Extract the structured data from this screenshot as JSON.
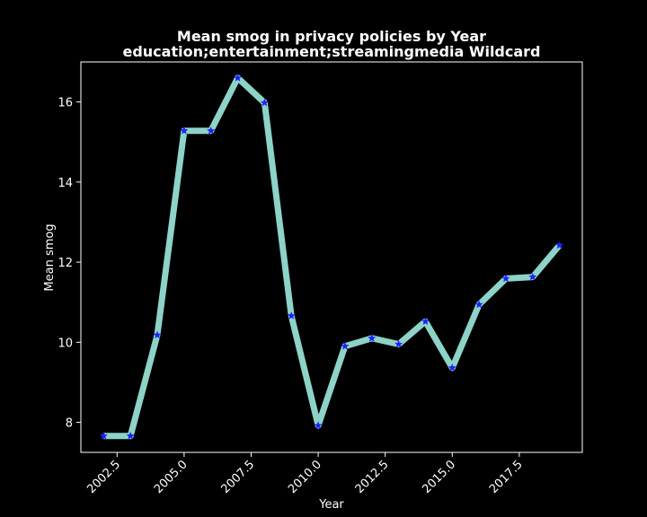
{
  "chart_data": {
    "type": "line",
    "title": "Mean smog in privacy policies by Year",
    "subtitle": "education;entertainment;streamingmedia Wildcard",
    "xlabel": "Year",
    "ylabel": "Mean smog",
    "xlim": [
      2001.15,
      2019.85
    ],
    "ylim": [
      7.25,
      17.0
    ],
    "x_ticks": [
      "2002.5",
      "2005.0",
      "2007.5",
      "2010.0",
      "2012.5",
      "2015.0",
      "2017.5"
    ],
    "y_ticks": [
      "8",
      "10",
      "12",
      "14",
      "16"
    ],
    "grid": false,
    "legend": "none",
    "series": [
      {
        "x": [
          2002,
          2003,
          2004,
          2005,
          2006,
          2007,
          2008,
          2009,
          2010,
          2011,
          2012,
          2013,
          2014,
          2015,
          2016,
          2017,
          2018,
          2019
        ],
        "values": [
          7.66,
          7.66,
          10.18,
          15.28,
          15.28,
          16.6,
          15.98,
          10.66,
          7.92,
          9.9,
          10.1,
          9.95,
          10.52,
          9.36,
          10.94,
          11.59,
          11.63,
          12.42
        ]
      }
    ],
    "colors": {
      "background": "#000000",
      "line": "#8dd3c7",
      "marker": "#1f1fff",
      "axes": "#ffffff",
      "text": "#ffffff"
    },
    "marker": "star-icon"
  }
}
